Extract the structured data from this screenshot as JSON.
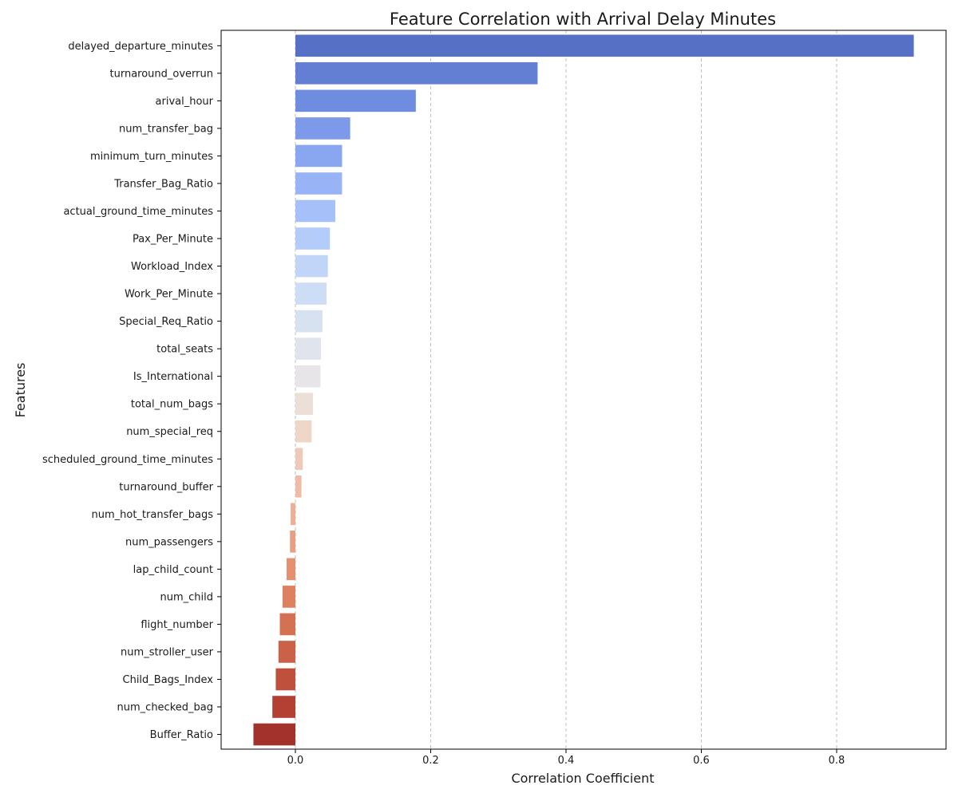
{
  "chart_data": {
    "type": "bar",
    "orientation": "horizontal",
    "title": "Feature Correlation with Arrival Delay Minutes",
    "xlabel": "Correlation Coefficient",
    "ylabel": "Features",
    "xlim": [
      -0.077,
      0.963
    ],
    "xticks": [
      0.0,
      0.2,
      0.4,
      0.6,
      0.8
    ],
    "xtick_labels": [
      "0.0",
      "0.2",
      "0.4",
      "0.6",
      "0.8"
    ],
    "grid": "x-axis dashed",
    "colormap": "coolwarm",
    "categories": [
      "delayed_departure_minutes",
      "turnaround_overrun",
      "arival_hour",
      "num_transfer_bag",
      "minimum_turn_minutes",
      "Transfer_Bag_Ratio",
      "actual_ground_time_minutes",
      "Pax_Per_Minute",
      "Workload_Index",
      "Work_Per_Minute",
      "Special_Req_Ratio",
      "total_seats",
      "Is_International",
      "total_num_bags",
      "num_special_req",
      "scheduled_ground_time_minutes",
      "turnaround_buffer",
      "num_hot_transfer_bags",
      "num_passengers",
      "lap_child_count",
      "num_child",
      "flight_number",
      "num_stroller_user",
      "Child_Bags_Index",
      "num_checked_bag",
      "Buffer_Ratio"
    ],
    "values": [
      0.914,
      0.358,
      0.178,
      0.081,
      0.069,
      0.069,
      0.059,
      0.051,
      0.048,
      0.046,
      0.04,
      0.038,
      0.037,
      0.026,
      0.024,
      0.011,
      0.009,
      -0.007,
      -0.008,
      -0.013,
      -0.019,
      -0.023,
      -0.025,
      -0.029,
      -0.034,
      -0.062
    ],
    "colors": [
      "#5670c6",
      "#627fd4",
      "#6e8de0",
      "#7c9ae9",
      "#89a7f1",
      "#98b4f6",
      "#a6c0f9",
      "#b4ccfa",
      "#c1d5f8",
      "#cdddf5",
      "#d7e2f0",
      "#e0e4ec",
      "#e7e5e8",
      "#ebdfd8",
      "#eed7c9",
      "#efcab8",
      "#efbca6",
      "#edae94",
      "#e99f83",
      "#e49071",
      "#dd8161",
      "#d57153",
      "#cb6147",
      "#bf513c",
      "#b24133",
      "#a3322b"
    ]
  }
}
